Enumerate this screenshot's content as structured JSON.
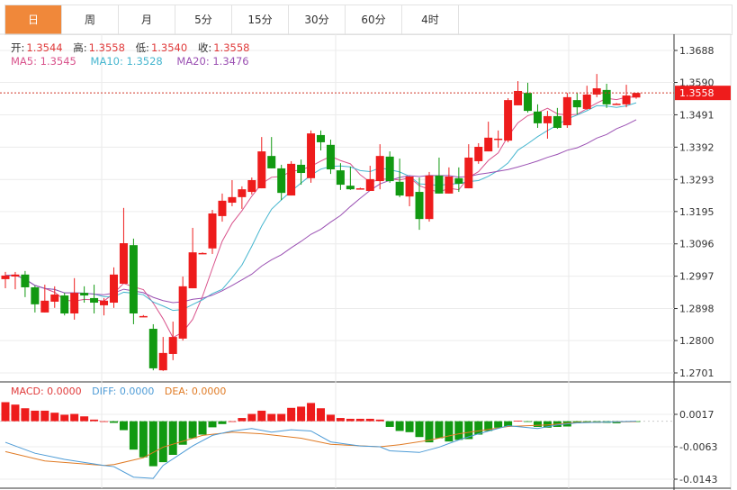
{
  "tabs": [
    {
      "label": "日",
      "active": true
    },
    {
      "label": "周",
      "active": false
    },
    {
      "label": "月",
      "active": false
    },
    {
      "label": "5分",
      "active": false
    },
    {
      "label": "15分",
      "active": false
    },
    {
      "label": "30分",
      "active": false
    },
    {
      "label": "60分",
      "active": false
    },
    {
      "label": "4时",
      "active": false
    }
  ],
  "ohlc_info": {
    "open_label": "开:",
    "open": "1.3544",
    "high_label": "高:",
    "high": "1.3558",
    "low_label": "低:",
    "low": "1.3540",
    "close_label": "收:",
    "close": "1.3558"
  },
  "ma_info": {
    "ma5": "MA5: 1.3545",
    "ma10": "MA10: 1.3528",
    "ma20": "MA20: 1.3476"
  },
  "macd_info": {
    "macd": "MACD: 0.0000",
    "diff": "DIFF: 0.0000",
    "dea": "DEA: 0.0000"
  },
  "current_price": "1.3558",
  "colors": {
    "up": "#ee1c1c",
    "down": "#119911",
    "ma5": "#d9538c",
    "ma10": "#46b6cf",
    "ma20": "#9b51b3",
    "diff": "#4d9bd6",
    "dea": "#e07b25",
    "active_tab": "#f0883a"
  },
  "chart_data": [
    {
      "type": "candlestick",
      "ylim": [
        1.2701,
        1.3688
      ],
      "y_ticks": [
        "1.3688",
        "1.3590",
        "1.3491",
        "1.3392",
        "1.3293",
        "1.3195",
        "1.3096",
        "1.2997",
        "1.2898",
        "1.2800",
        "1.2701"
      ],
      "ma_periods": [
        5,
        10,
        20
      ],
      "grid": true,
      "candles": [
        [
          1.2988,
          1.301,
          1.296,
          1.2999
        ],
        [
          1.2996,
          1.301,
          1.2957,
          1.3002
        ],
        [
          1.3002,
          1.3013,
          1.2933,
          1.2963
        ],
        [
          1.2963,
          1.2968,
          1.2886,
          1.2911
        ],
        [
          1.2886,
          1.2971,
          1.2886,
          1.2922
        ],
        [
          1.2919,
          1.2966,
          1.29,
          1.2941
        ],
        [
          1.2938,
          1.2946,
          1.2877,
          1.2883
        ],
        [
          1.2883,
          1.2991,
          1.2864,
          1.2946
        ],
        [
          1.2946,
          1.2966,
          1.2916,
          1.2938
        ],
        [
          1.293,
          1.2971,
          1.2883,
          1.2916
        ],
        [
          1.2908,
          1.293,
          1.2877,
          1.2922
        ],
        [
          1.2916,
          1.3024,
          1.29,
          1.3002
        ],
        [
          1.2974,
          1.3206,
          1.2974,
          1.3098
        ],
        [
          1.3092,
          1.3112,
          1.285,
          1.2883
        ],
        [
          1.2875,
          1.2878,
          1.2872,
          1.2875
        ],
        [
          1.2836,
          1.285,
          1.2709,
          1.2715
        ],
        [
          1.2709,
          1.2811,
          1.2707,
          1.2762
        ],
        [
          1.2759,
          1.2858,
          1.274,
          1.2811
        ],
        [
          1.2806,
          1.2996,
          1.28,
          1.2966
        ],
        [
          1.296,
          1.3145,
          1.296,
          1.307
        ],
        [
          1.3068,
          1.307,
          1.3066,
          1.3068
        ],
        [
          1.3082,
          1.32,
          1.3065,
          1.3189
        ],
        [
          1.3181,
          1.325,
          1.3164,
          1.3228
        ],
        [
          1.3222,
          1.3291,
          1.3211,
          1.3239
        ],
        [
          1.3239,
          1.3272,
          1.3203,
          1.3263
        ],
        [
          1.3255,
          1.3299,
          1.3247,
          1.3291
        ],
        [
          1.3266,
          1.3423,
          1.3266,
          1.3379
        ],
        [
          1.3365,
          1.3423,
          1.3327,
          1.3327
        ],
        [
          1.3327,
          1.3338,
          1.323,
          1.3252
        ],
        [
          1.3244,
          1.3349,
          1.3244,
          1.3341
        ],
        [
          1.3338,
          1.3354,
          1.3277,
          1.3313
        ],
        [
          1.3297,
          1.3443,
          1.3283,
          1.3434
        ],
        [
          1.3429,
          1.3443,
          1.3382,
          1.3407
        ],
        [
          1.3399,
          1.3415,
          1.331,
          1.3324
        ],
        [
          1.3321,
          1.3343,
          1.3261,
          1.3277
        ],
        [
          1.3274,
          1.3332,
          1.3261,
          1.3263
        ],
        [
          1.3266,
          1.3268,
          1.3264,
          1.3266
        ],
        [
          1.3258,
          1.3335,
          1.3258,
          1.3294
        ],
        [
          1.3288,
          1.3401,
          1.3263,
          1.3365
        ],
        [
          1.3363,
          1.3379,
          1.3283,
          1.3288
        ],
        [
          1.3286,
          1.3357,
          1.3239,
          1.3244
        ],
        [
          1.3241,
          1.3302,
          1.3211,
          1.3302
        ],
        [
          1.3255,
          1.3299,
          1.3139,
          1.3172
        ],
        [
          1.3172,
          1.3316,
          1.3164,
          1.3305
        ],
        [
          1.3305,
          1.336,
          1.325,
          1.325
        ],
        [
          1.325,
          1.333,
          1.325,
          1.3302
        ],
        [
          1.3297,
          1.333,
          1.3255,
          1.328
        ],
        [
          1.3266,
          1.3401,
          1.3266,
          1.336
        ],
        [
          1.3349,
          1.3404,
          1.3341,
          1.3393
        ],
        [
          1.3379,
          1.347,
          1.3379,
          1.3421
        ],
        [
          1.3415,
          1.3443,
          1.339,
          1.3418
        ],
        [
          1.3412,
          1.3542,
          1.3407,
          1.3536
        ],
        [
          1.352,
          1.3594,
          1.352,
          1.3564
        ],
        [
          1.3558,
          1.3589,
          1.3498,
          1.3503
        ],
        [
          1.3501,
          1.3523,
          1.3451,
          1.3465
        ],
        [
          1.3465,
          1.3503,
          1.3418,
          1.3487
        ],
        [
          1.3487,
          1.3512,
          1.3448,
          1.3451
        ],
        [
          1.3459,
          1.3558,
          1.3451,
          1.3545
        ],
        [
          1.3536,
          1.3558,
          1.3492,
          1.3514
        ],
        [
          1.3509,
          1.358,
          1.3506,
          1.3553
        ],
        [
          1.3553,
          1.3616,
          1.3545,
          1.3572
        ],
        [
          1.3567,
          1.3586,
          1.3512,
          1.3523
        ],
        [
          1.3525,
          1.3527,
          1.3523,
          1.3525
        ],
        [
          1.3523,
          1.3583,
          1.3514,
          1.355
        ],
        [
          1.3544,
          1.3558,
          1.354,
          1.3558
        ]
      ]
    },
    {
      "type": "macd",
      "ylim": [
        -0.016,
        0.004
      ],
      "y_ticks": [
        "0.0017",
        "-0.0063",
        "-0.0143"
      ],
      "histogram": [
        0.0047,
        0.0041,
        0.0032,
        0.0026,
        0.0026,
        0.0021,
        0.0016,
        0.0018,
        0.0012,
        0.0004,
        0.0,
        -0.0004,
        -0.0022,
        -0.007,
        -0.0089,
        -0.0111,
        -0.0101,
        -0.0083,
        -0.0058,
        -0.0042,
        -0.0033,
        -0.0015,
        -0.0007,
        0.0,
        0.0008,
        0.0018,
        0.0026,
        0.0018,
        0.0018,
        0.0033,
        0.0036,
        0.0045,
        0.0032,
        0.0016,
        0.0008,
        0.0006,
        0.0006,
        0.0006,
        0.0004,
        -0.0014,
        -0.0024,
        -0.0027,
        -0.0039,
        -0.0052,
        -0.0042,
        -0.005,
        -0.0046,
        -0.0044,
        -0.0033,
        -0.0024,
        -0.0016,
        -0.0013,
        0.0001,
        -0.0001,
        -0.0014,
        -0.0016,
        -0.0014,
        -0.0013,
        -0.0005,
        -0.0004,
        -0.0004,
        -0.0004,
        -0.0005,
        -0.0002,
        -0.0001
      ],
      "diff": [
        [
          0,
          -0.0052
        ],
        [
          3,
          -0.0079
        ],
        [
          6,
          -0.0094
        ],
        [
          10,
          -0.0109
        ],
        [
          11,
          -0.0112
        ],
        [
          13,
          -0.0138
        ],
        [
          15,
          -0.0141
        ],
        [
          16,
          -0.0109
        ],
        [
          19,
          -0.0061
        ],
        [
          21,
          -0.0035
        ],
        [
          23,
          -0.0024
        ],
        [
          25,
          -0.0018
        ],
        [
          27,
          -0.0027
        ],
        [
          29,
          -0.0021
        ],
        [
          31,
          -0.0024
        ],
        [
          33,
          -0.0051
        ],
        [
          36,
          -0.0061
        ],
        [
          38,
          -0.0063
        ],
        [
          39,
          -0.0073
        ],
        [
          42,
          -0.0077
        ],
        [
          44,
          -0.0064
        ],
        [
          46,
          -0.0046
        ],
        [
          48,
          -0.0031
        ],
        [
          51,
          -0.0011
        ],
        [
          54,
          -0.0018
        ],
        [
          56,
          -0.0009
        ],
        [
          58,
          -0.0004
        ],
        [
          64,
          0.0
        ]
      ],
      "dea": [
        [
          0,
          -0.0075
        ],
        [
          4,
          -0.0098
        ],
        [
          10,
          -0.0109
        ],
        [
          11,
          -0.0107
        ],
        [
          14,
          -0.009
        ],
        [
          16,
          -0.0064
        ],
        [
          20,
          -0.0035
        ],
        [
          23,
          -0.0027
        ],
        [
          26,
          -0.0031
        ],
        [
          30,
          -0.0042
        ],
        [
          33,
          -0.0057
        ],
        [
          38,
          -0.0063
        ],
        [
          40,
          -0.0058
        ],
        [
          43,
          -0.0047
        ],
        [
          46,
          -0.0031
        ],
        [
          51,
          -0.0013
        ],
        [
          55,
          -0.0009
        ],
        [
          58,
          -0.0003
        ],
        [
          64,
          -0.0001
        ]
      ]
    }
  ]
}
